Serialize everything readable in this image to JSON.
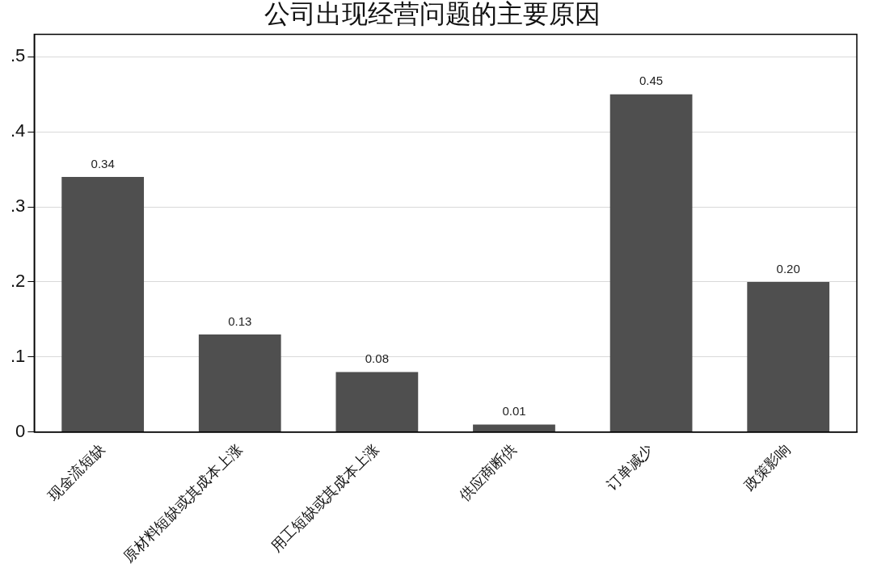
{
  "chart_data": {
    "type": "bar",
    "title": "公司出现经营问题的主要原因",
    "categories": [
      "现金流短缺",
      "原材料短缺或其成本上涨",
      "用工短缺或其成本上涨",
      "供应商断供",
      "订单减少",
      "政策影响"
    ],
    "values": [
      0.34,
      0.13,
      0.08,
      0.01,
      0.45,
      0.2
    ],
    "color": "#4f4f4f",
    "ylim": [
      0,
      0.53
    ],
    "yticks": [
      0,
      {
        "value": 0.1,
        "label": ".1"
      },
      {
        "value": 0.2,
        "label": ".2"
      },
      {
        "value": 0.3,
        "label": ".3"
      },
      {
        "value": 0.4,
        "label": ".4"
      },
      {
        "value": 0.5,
        "label": ".5"
      }
    ],
    "value_labels": [
      "0.34",
      "0.13",
      "0.08",
      "0.01",
      "0.45",
      "0.20"
    ],
    "grid": "y",
    "legend": false
  }
}
